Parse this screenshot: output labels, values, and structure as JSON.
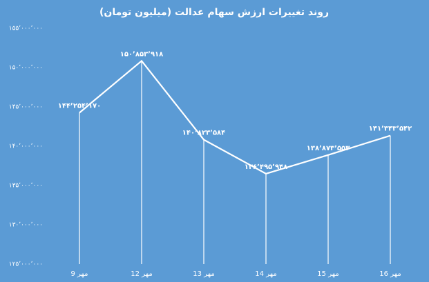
{
  "chart_data": {
    "type": "line",
    "title": "روند تغییرات ارزش سهام عدالت (میلیون تومان)",
    "categories": [
      "9 مهر",
      "12 مهر",
      "13 مهر",
      "14 مهر",
      "15 مهر",
      "16 مهر"
    ],
    "values": [
      144254170,
      150853918,
      140823584,
      136495948,
      138873553,
      141343542
    ],
    "value_labels": [
      "۱۴۴٬۲۵۴٬۱۷۰",
      "۱۵۰٬۸۵۳٬۹۱۸",
      "۱۴۰٬۸۲۳٬۵۸۴",
      "۱۳۶٬۴۹۵٬۹۴۸",
      "۱۳۸٬۸۷۳٬۵۵۳",
      "۱۴۱٬۳۴۳٬۵۴۲"
    ],
    "color": "#ffffff",
    "ylim": [
      125000000,
      155000000
    ],
    "yticks": [
      {
        "value": 125000000,
        "label": "۱۲۵٬۰۰۰٬۰۰۰"
      },
      {
        "value": 130000000,
        "label": "۱۳۰٬۰۰۰٬۰۰۰"
      },
      {
        "value": 135000000,
        "label": "۱۳۵٬۰۰۰٬۰۰۰"
      },
      {
        "value": 140000000,
        "label": "۱۴۰٬۰۰۰٬۰۰۰"
      },
      {
        "value": 145000000,
        "label": "۱۴۵٬۰۰۰٬۰۰۰"
      },
      {
        "value": 150000000,
        "label": "۱۵۰٬۰۰۰٬۰۰۰"
      },
      {
        "value": 155000000,
        "label": "۱۵۵٬۰۰۰٬۰۰۰"
      }
    ],
    "drop_lines": true
  }
}
